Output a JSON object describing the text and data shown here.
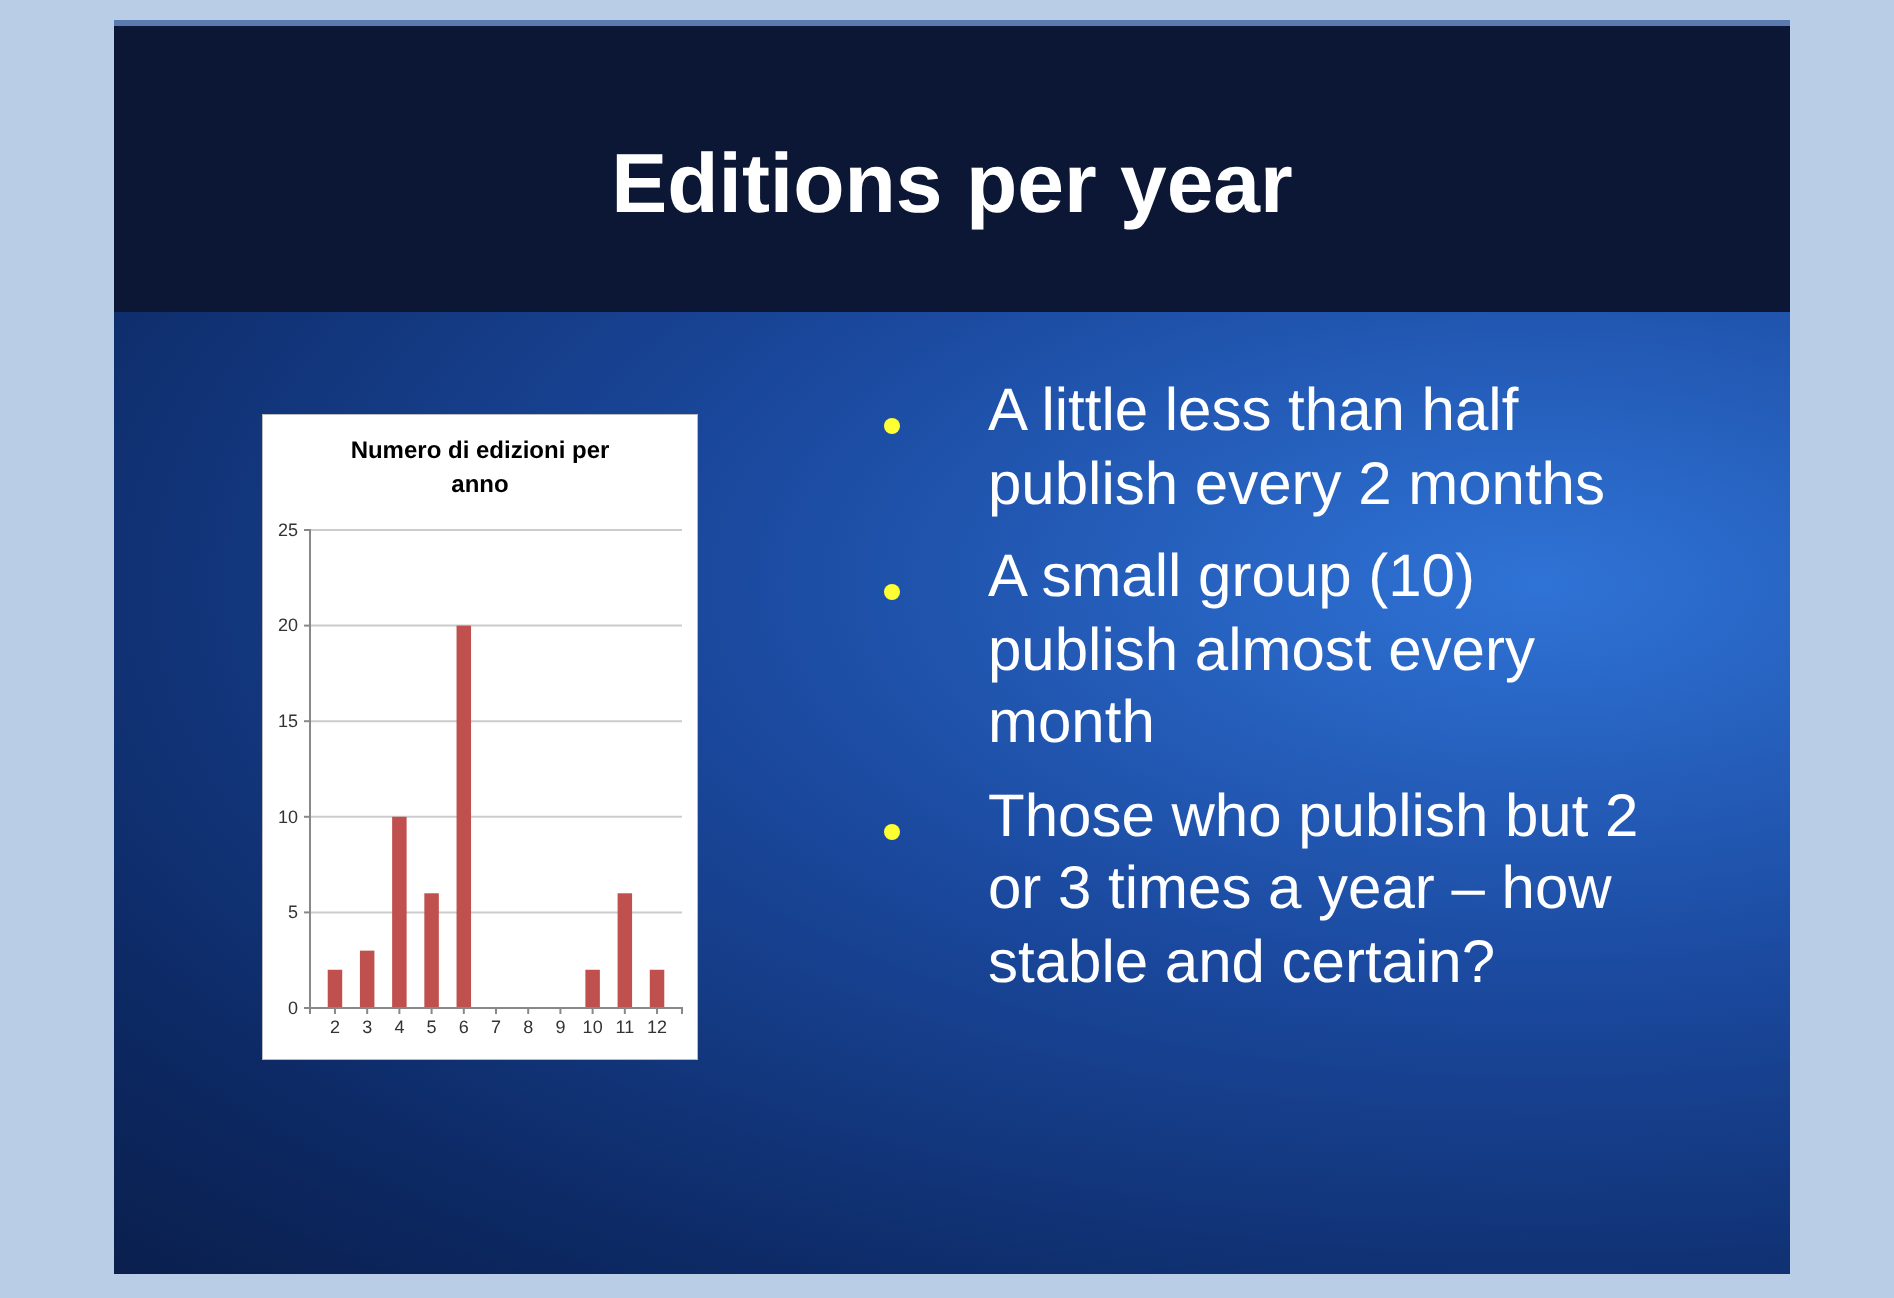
{
  "chart_data": {
    "type": "bar",
    "title": "Numero di edizioni per anno",
    "categories": [
      "2",
      "3",
      "4",
      "5",
      "6",
      "7",
      "8",
      "9",
      "10",
      "11",
      "12"
    ],
    "values": [
      2,
      3,
      10,
      6,
      20,
      0,
      0,
      0,
      2,
      6,
      2
    ],
    "color": "#c0504d",
    "ylim": [
      0,
      25
    ],
    "yticks": [
      0,
      5,
      10,
      15,
      20,
      25
    ],
    "grid": "y",
    "annotations": [
      "Editions per year",
      "A little less than half publish every 2 months",
      "A small group (10) publish almost every month",
      "Those who publish but 2 or 3 times a year – how stable and certain?"
    ]
  }
}
